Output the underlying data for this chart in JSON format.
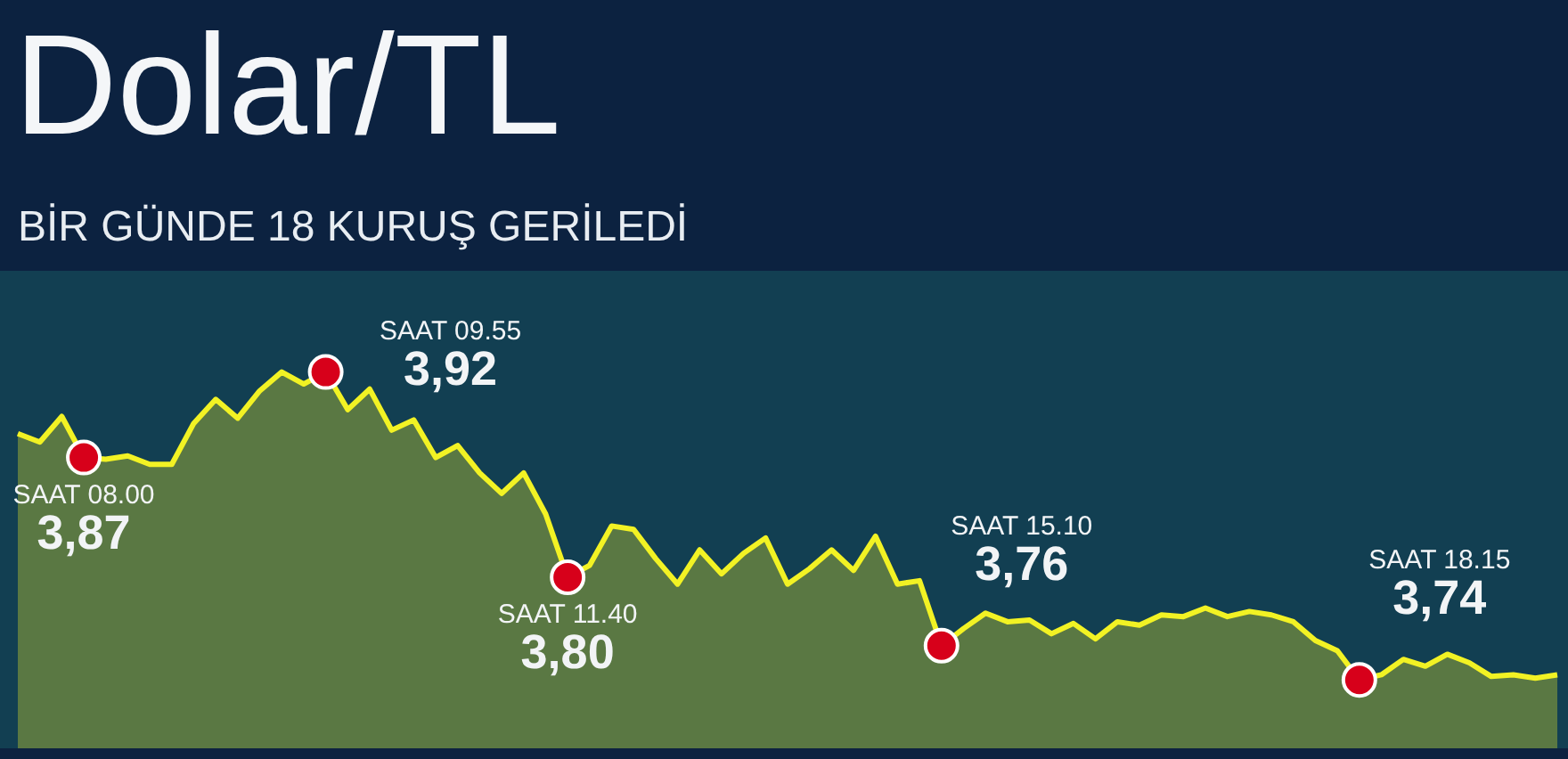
{
  "chart_data": {
    "type": "area",
    "title": "Dolar/TL",
    "subtitle": "BİR GÜNDE 18 KURUŞ GERİLEDİ",
    "legend": false,
    "tick_labels": false,
    "categories": [
      null,
      null,
      null,
      null,
      null,
      null,
      null,
      null,
      null,
      null,
      null,
      null,
      null,
      null,
      null,
      null,
      null,
      null,
      null,
      null,
      null,
      null,
      null,
      null,
      null,
      null,
      null,
      null,
      null,
      null,
      null,
      null,
      null,
      null,
      null,
      null,
      null,
      null,
      null,
      null,
      null,
      null,
      null,
      null,
      null,
      null,
      null,
      null,
      null,
      null,
      null,
      null,
      null,
      null,
      null,
      null,
      null,
      null,
      null,
      null,
      null,
      null,
      null,
      null,
      null,
      null,
      null,
      null,
      null,
      null,
      null
    ],
    "series": [
      {
        "color": "#f2f224",
        "values": [
          3.884,
          3.879,
          3.894,
          3.87,
          3.869,
          3.871,
          3.866,
          3.866,
          3.89,
          3.904,
          3.893,
          3.909,
          3.92,
          3.913,
          3.92,
          3.898,
          3.91,
          3.886,
          3.892,
          3.87,
          3.877,
          3.861,
          3.849,
          3.861,
          3.837,
          3.8,
          3.807,
          3.83,
          3.828,
          3.811,
          3.796,
          3.816,
          3.802,
          3.814,
          3.823,
          3.796,
          3.805,
          3.816,
          3.804,
          3.824,
          3.796,
          3.798,
          3.76,
          3.77,
          3.779,
          3.774,
          3.775,
          3.767,
          3.773,
          3.764,
          3.774,
          3.772,
          3.778,
          3.777,
          3.782,
          3.777,
          3.78,
          3.778,
          3.774,
          3.763,
          3.757,
          3.74,
          3.743,
          3.752,
          3.748,
          3.755,
          3.75,
          3.742,
          3.743,
          3.741,
          3.743
        ],
        "value_labels": [
          null,
          null,
          null,
          "3,87",
          null,
          null,
          null,
          null,
          null,
          null,
          null,
          null,
          null,
          null,
          "3,92",
          null,
          null,
          null,
          null,
          null,
          null,
          null,
          null,
          null,
          null,
          "3,80",
          null,
          null,
          null,
          null,
          null,
          null,
          null,
          null,
          null,
          null,
          null,
          null,
          null,
          null,
          null,
          null,
          "3,76",
          null,
          null,
          null,
          null,
          null,
          null,
          null,
          null,
          null,
          null,
          null,
          null,
          null,
          null,
          null,
          null,
          null,
          null,
          "3,74",
          null,
          null,
          null,
          null,
          null,
          null,
          null,
          null,
          null
        ]
      }
    ],
    "annotations": [
      "SAAT 08.00",
      "SAAT 09.55",
      "SAAT 11.40",
      "SAAT 15.10",
      "SAAT 18.15"
    ]
  }
}
